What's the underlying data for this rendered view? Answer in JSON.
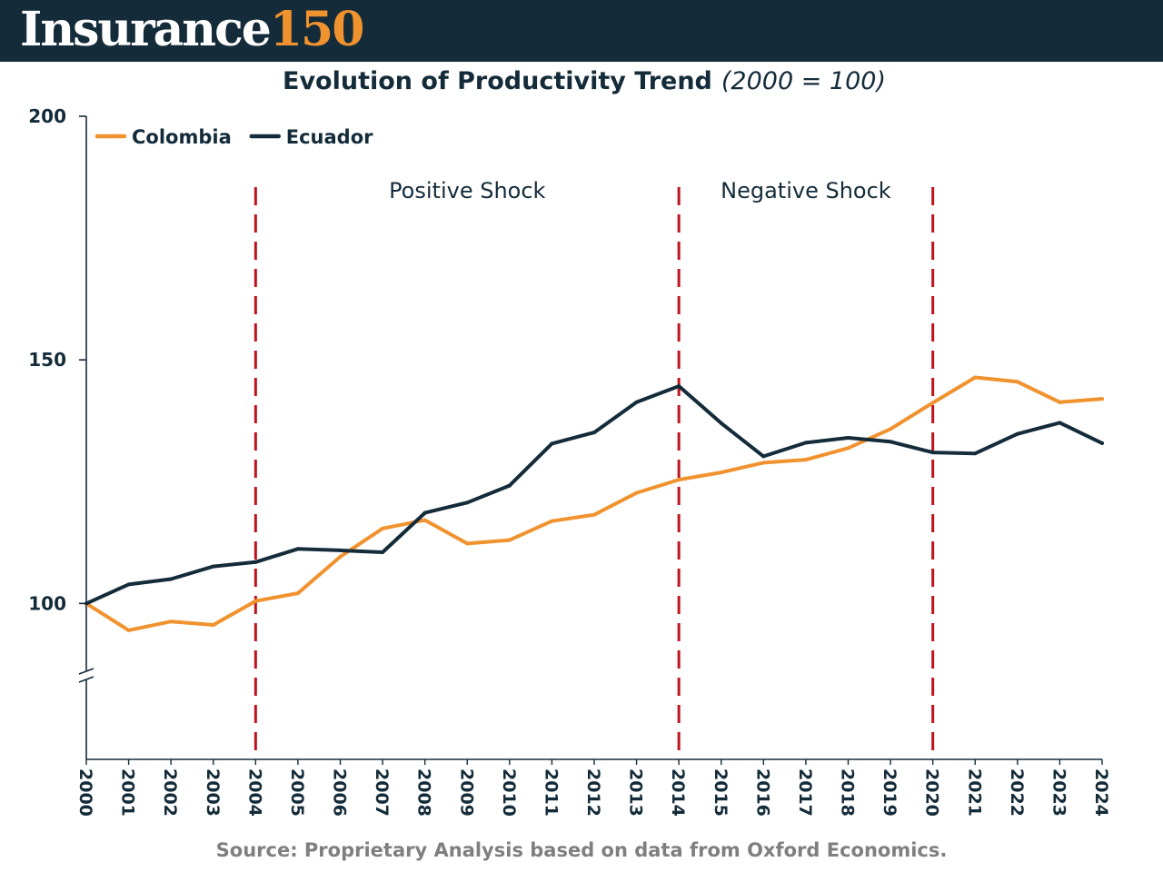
{
  "header": {
    "brand_word": "Insurance",
    "brand_number": "150",
    "background": "#142b3a",
    "accent": "#f0922e"
  },
  "source_note": "Source: Proprietary Analysis based on data from Oxford Economics.",
  "chart_data": {
    "type": "line",
    "title": "Evolution of Productivity Trend",
    "subtitle": "(2000 = 100)",
    "xlabel": "",
    "ylabel": "",
    "x": [
      "2000",
      "2001",
      "2002",
      "2003",
      "2004",
      "2005",
      "2006",
      "2007",
      "2008",
      "2009",
      "2010",
      "2011",
      "2012",
      "2013",
      "2014",
      "2015",
      "2016",
      "2017",
      "2018",
      "2019",
      "2020",
      "2021",
      "2022",
      "2023",
      "2024"
    ],
    "ylim": [
      68,
      200
    ],
    "y_axis_break": true,
    "yticks": [
      100,
      150,
      200
    ],
    "grid": false,
    "legend_position": "top-left",
    "series": [
      {
        "name": "Colombia",
        "color": "#f0922e",
        "values": [
          100,
          94.5,
          96.3,
          95.6,
          100.5,
          102.1,
          109.6,
          115.4,
          117.1,
          112.3,
          113.0,
          116.9,
          118.2,
          122.7,
          125.4,
          126.9,
          128.9,
          129.5,
          131.9,
          135.8,
          141.2,
          146.4,
          145.5,
          141.3,
          142.0
        ]
      },
      {
        "name": "Ecuador",
        "color": "#142b3a",
        "values": [
          100,
          103.9,
          105.0,
          107.6,
          108.5,
          111.2,
          110.9,
          110.5,
          118.6,
          120.7,
          124.2,
          132.8,
          135.1,
          141.3,
          144.6,
          137.0,
          130.2,
          133.0,
          134.0,
          133.2,
          131.0,
          130.8,
          134.8,
          137.1,
          132.9
        ]
      }
    ],
    "shock_lines": {
      "years": [
        "2004",
        "2014",
        "2020"
      ],
      "color": "#c0131b"
    },
    "annotations": [
      {
        "text": "Positive Shock",
        "from": "2004",
        "to": "2014"
      },
      {
        "text": "Negative Shock",
        "from": "2014",
        "to": "2020"
      }
    ]
  }
}
